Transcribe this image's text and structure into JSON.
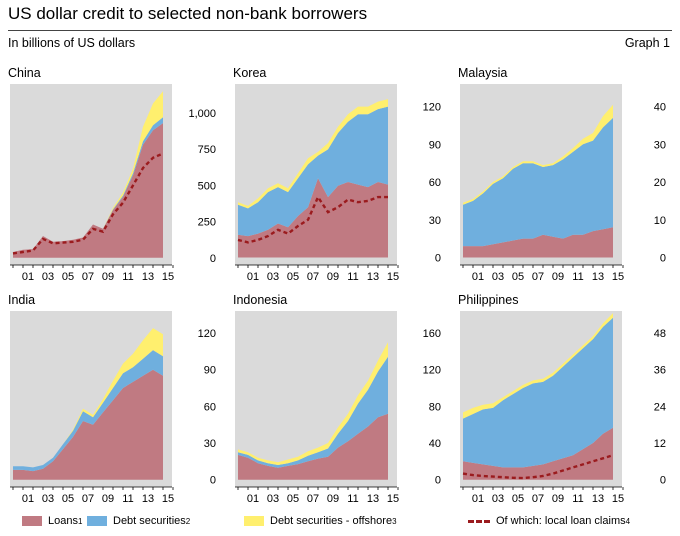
{
  "header": {
    "title": "US dollar credit to selected non-bank borrowers",
    "subtitle": "In billions of US dollars",
    "graph_label": "Graph 1"
  },
  "colors": {
    "loans": "#c07a82",
    "debt": "#6fafde",
    "offshore": "#ffef6e",
    "local": "#9b1b1e",
    "panel_bg": "#dadada"
  },
  "legend": {
    "loans": "Loans",
    "loans_note": "1",
    "debt": "Debt securities",
    "debt_note": "2",
    "offshore": "Debt securities - offshore",
    "offshore_note": "3",
    "local": "Of which: local loan claims",
    "local_note": "4"
  },
  "chart_data": [
    {
      "type": "area",
      "title": "China",
      "x": [
        2000,
        2001,
        2002,
        2003,
        2004,
        2005,
        2006,
        2007,
        2008,
        2009,
        2010,
        2011,
        2012,
        2013,
        2014,
        2015
      ],
      "x_tick_labels": [
        "01",
        "03",
        "05",
        "07",
        "09",
        "11",
        "13",
        "15"
      ],
      "ylim": [
        -50,
        1200
      ],
      "y_ticks": [
        0,
        250,
        500,
        750,
        "1,000"
      ],
      "series": [
        {
          "name": "Loans",
          "values": [
            40,
            55,
            60,
            150,
            110,
            115,
            125,
            140,
            230,
            200,
            330,
            420,
            570,
            780,
            880,
            930
          ]
        },
        {
          "name": "Debt securities",
          "values": [
            0,
            0,
            0,
            0,
            0,
            0,
            0,
            0,
            0,
            0,
            5,
            10,
            15,
            25,
            35,
            40
          ]
        },
        {
          "name": "Debt securities - offshore",
          "values": [
            0,
            0,
            0,
            0,
            0,
            0,
            0,
            0,
            0,
            0,
            10,
            20,
            30,
            100,
            150,
            180
          ]
        },
        {
          "name": "Of which: local loan claims",
          "values": [
            30,
            40,
            50,
            130,
            100,
            105,
            110,
            125,
            200,
            180,
            300,
            380,
            500,
            620,
            690,
            720
          ]
        }
      ]
    },
    {
      "type": "area",
      "title": "Korea",
      "x": [
        2000,
        2001,
        2002,
        2003,
        2004,
        2005,
        2006,
        2007,
        2008,
        2009,
        2010,
        2011,
        2012,
        2013,
        2014,
        2015
      ],
      "x_tick_labels": [
        "01",
        "03",
        "05",
        "07",
        "09",
        "11",
        "13",
        "15"
      ],
      "ylim": [
        -6,
        138
      ],
      "y_ticks": [
        0,
        30,
        60,
        90,
        120
      ],
      "series": [
        {
          "name": "Loans",
          "values": [
            18,
            17,
            19,
            22,
            27,
            24,
            33,
            40,
            63,
            48,
            57,
            60,
            58,
            56,
            60,
            58
          ]
        },
        {
          "name": "Debt securities",
          "values": [
            24,
            22,
            25,
            30,
            29,
            28,
            30,
            34,
            18,
            38,
            42,
            48,
            56,
            58,
            58,
            62
          ]
        },
        {
          "name": "Debt securities - offshore",
          "values": [
            2,
            2,
            3,
            3,
            3,
            3,
            4,
            5,
            3,
            5,
            5,
            6,
            6,
            6,
            6,
            6
          ]
        },
        {
          "name": "Of which: local loan claims",
          "values": [
            14,
            12,
            14,
            17,
            22,
            19,
            25,
            30,
            48,
            36,
            40,
            46,
            44,
            45,
            48,
            48
          ]
        }
      ]
    },
    {
      "type": "area",
      "title": "Malaysia",
      "x": [
        2000,
        2001,
        2002,
        2003,
        2004,
        2005,
        2006,
        2007,
        2008,
        2009,
        2010,
        2011,
        2012,
        2013,
        2014,
        2015
      ],
      "x_tick_labels": [
        "01",
        "03",
        "05",
        "07",
        "09",
        "11",
        "13",
        "15"
      ],
      "ylim": [
        -2,
        46
      ],
      "y_ticks": [
        0,
        10,
        20,
        30,
        40
      ],
      "series": [
        {
          "name": "Loans",
          "values": [
            3,
            3,
            3,
            3.5,
            4,
            4.5,
            5,
            5,
            6,
            5.5,
            5,
            6,
            6,
            7,
            7.5,
            8
          ]
        },
        {
          "name": "Debt securities",
          "values": [
            11,
            12,
            14,
            16,
            17,
            19,
            20,
            20,
            18,
            19,
            21,
            22,
            24,
            24,
            27,
            29
          ]
        },
        {
          "name": "Debt securities - offshore",
          "values": [
            0.5,
            0.5,
            0.5,
            0.5,
            0.5,
            0.5,
            0.5,
            0.5,
            0.5,
            0.5,
            0.8,
            1,
            1.5,
            2,
            3,
            3.5
          ]
        }
      ]
    },
    {
      "type": "area",
      "title": "India",
      "x": [
        2000,
        2001,
        2002,
        2003,
        2004,
        2005,
        2006,
        2007,
        2008,
        2009,
        2010,
        2011,
        2012,
        2013,
        2014,
        2015
      ],
      "x_tick_labels": [
        "01",
        "03",
        "05",
        "07",
        "09",
        "11",
        "13",
        "15"
      ],
      "ylim": [
        -6,
        138
      ],
      "y_ticks": [
        0,
        30,
        60,
        90,
        120
      ],
      "series": [
        {
          "name": "Loans",
          "values": [
            8,
            8,
            7,
            9,
            15,
            25,
            35,
            48,
            45,
            55,
            65,
            75,
            80,
            85,
            90,
            85
          ]
        },
        {
          "name": "Debt securities",
          "values": [
            3,
            3,
            3,
            3,
            3,
            4,
            5,
            8,
            6,
            8,
            10,
            12,
            12,
            14,
            16,
            16
          ]
        },
        {
          "name": "Debt securities - offshore",
          "values": [
            0,
            0,
            0,
            0,
            0,
            0,
            1,
            2,
            2,
            3,
            6,
            8,
            11,
            15,
            18,
            18
          ]
        }
      ]
    },
    {
      "type": "area",
      "title": "Indonesia",
      "x": [
        2000,
        2001,
        2002,
        2003,
        2004,
        2005,
        2006,
        2007,
        2008,
        2009,
        2010,
        2011,
        2012,
        2013,
        2014,
        2015
      ],
      "x_tick_labels": [
        "01",
        "03",
        "05",
        "07",
        "09",
        "11",
        "13",
        "15"
      ],
      "ylim": [
        -8,
        184
      ],
      "y_ticks": [
        0,
        40,
        80,
        120,
        160
      ],
      "series": [
        {
          "name": "Loans",
          "values": [
            27,
            24,
            18,
            15,
            13,
            15,
            17,
            20,
            23,
            25,
            35,
            42,
            50,
            58,
            68,
            72
          ]
        },
        {
          "name": "Debt securities",
          "values": [
            3,
            3,
            3,
            3,
            3,
            3,
            4,
            6,
            7,
            9,
            15,
            22,
            33,
            40,
            50,
            62
          ]
        },
        {
          "name": "Debt securities - offshore",
          "values": [
            3,
            3,
            3,
            3,
            3,
            4,
            4,
            5,
            5,
            6,
            7,
            8,
            9,
            10,
            12,
            16
          ]
        }
      ]
    },
    {
      "type": "area",
      "title": "Philippines",
      "x": [
        2000,
        2001,
        2002,
        2003,
        2004,
        2005,
        2006,
        2007,
        2008,
        2009,
        2010,
        2011,
        2012,
        2013,
        2014,
        2015
      ],
      "x_tick_labels": [
        "01",
        "03",
        "05",
        "07",
        "09",
        "11",
        "13",
        "15"
      ],
      "ylim": [
        -2.4,
        55.2
      ],
      "y_ticks": [
        0,
        12,
        24,
        36,
        48
      ],
      "series": [
        {
          "name": "Loans",
          "values": [
            6,
            5.5,
            5,
            4.5,
            4,
            4,
            4,
            4.5,
            5,
            6,
            7,
            8,
            10,
            12,
            15,
            17
          ]
        },
        {
          "name": "Debt securities",
          "values": [
            14,
            16,
            18,
            19,
            22,
            24,
            26,
            27,
            27,
            28,
            30,
            32,
            33,
            34,
            35,
            36
          ]
        },
        {
          "name": "Debt securities - offshore",
          "values": [
            2,
            2,
            1.5,
            1.5,
            1,
            1,
            1,
            1,
            1,
            1,
            1,
            1,
            1,
            1,
            1.2,
            1.5
          ]
        },
        {
          "name": "Of which: local loan claims",
          "values": [
            2,
            1.5,
            1.2,
            1,
            0.8,
            0.6,
            0.5,
            0.8,
            1.2,
            2,
            3,
            4,
            5,
            6,
            7,
            8
          ]
        }
      ]
    }
  ]
}
